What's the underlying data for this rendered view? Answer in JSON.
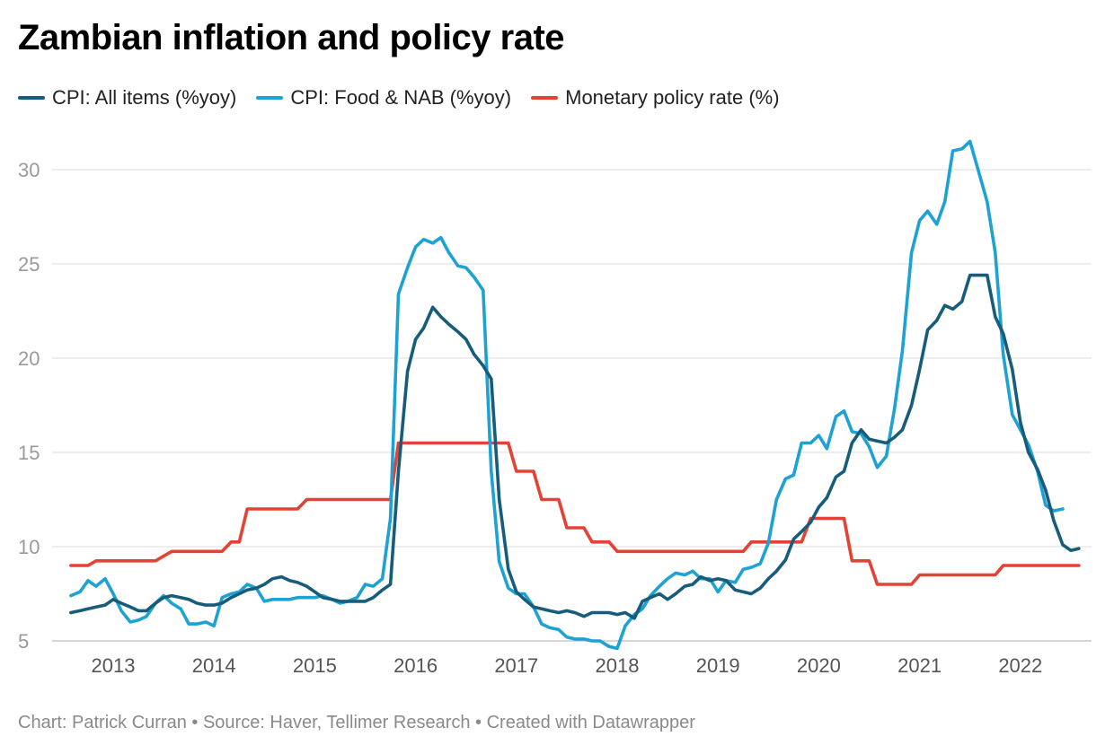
{
  "chart_data": {
    "type": "line",
    "title": "Zambian inflation and policy rate",
    "xlabel": "",
    "ylabel": "",
    "ylim": [
      5,
      32
    ],
    "yticks": [
      5,
      10,
      15,
      20,
      25,
      30
    ],
    "xlim": [
      2012.5,
      2022.75
    ],
    "xticks": [
      2013,
      2014,
      2015,
      2016,
      2017,
      2018,
      2019,
      2020,
      2021,
      2022
    ],
    "grid": true,
    "legend": "top-left",
    "series": [
      {
        "name": "CPI: All items (%yoy)",
        "color": "#175d7b",
        "points": [
          [
            2012.58,
            6.5
          ],
          [
            2012.67,
            6.6
          ],
          [
            2012.75,
            6.7
          ],
          [
            2012.83,
            6.8
          ],
          [
            2012.92,
            6.9
          ],
          [
            2013.0,
            7.2
          ],
          [
            2013.08,
            7.0
          ],
          [
            2013.17,
            6.8
          ],
          [
            2013.25,
            6.6
          ],
          [
            2013.33,
            6.6
          ],
          [
            2013.42,
            7.0
          ],
          [
            2013.5,
            7.3
          ],
          [
            2013.58,
            7.4
          ],
          [
            2013.67,
            7.3
          ],
          [
            2013.75,
            7.2
          ],
          [
            2013.83,
            7.0
          ],
          [
            2013.92,
            6.9
          ],
          [
            2014.0,
            6.9
          ],
          [
            2014.08,
            7.0
          ],
          [
            2014.17,
            7.3
          ],
          [
            2014.25,
            7.5
          ],
          [
            2014.33,
            7.7
          ],
          [
            2014.42,
            7.8
          ],
          [
            2014.5,
            8.0
          ],
          [
            2014.58,
            8.3
          ],
          [
            2014.67,
            8.4
          ],
          [
            2014.75,
            8.2
          ],
          [
            2014.83,
            8.1
          ],
          [
            2014.92,
            7.9
          ],
          [
            2015.0,
            7.6
          ],
          [
            2015.08,
            7.3
          ],
          [
            2015.17,
            7.2
          ],
          [
            2015.25,
            7.1
          ],
          [
            2015.33,
            7.1
          ],
          [
            2015.42,
            7.1
          ],
          [
            2015.5,
            7.1
          ],
          [
            2015.58,
            7.3
          ],
          [
            2015.67,
            7.7
          ],
          [
            2015.75,
            8.0
          ],
          [
            2015.83,
            14.0
          ],
          [
            2015.92,
            19.3
          ],
          [
            2016.0,
            21.0
          ],
          [
            2016.08,
            21.6
          ],
          [
            2016.17,
            22.7
          ],
          [
            2016.25,
            22.2
          ],
          [
            2016.33,
            21.8
          ],
          [
            2016.42,
            21.4
          ],
          [
            2016.5,
            21.0
          ],
          [
            2016.58,
            20.2
          ],
          [
            2016.67,
            19.6
          ],
          [
            2016.75,
            18.9
          ],
          [
            2016.83,
            12.5
          ],
          [
            2016.92,
            8.8
          ],
          [
            2017.0,
            7.6
          ],
          [
            2017.08,
            7.2
          ],
          [
            2017.17,
            6.8
          ],
          [
            2017.25,
            6.7
          ],
          [
            2017.33,
            6.6
          ],
          [
            2017.42,
            6.5
          ],
          [
            2017.5,
            6.6
          ],
          [
            2017.58,
            6.5
          ],
          [
            2017.67,
            6.3
          ],
          [
            2017.75,
            6.5
          ],
          [
            2017.83,
            6.5
          ],
          [
            2017.92,
            6.5
          ],
          [
            2018.0,
            6.4
          ],
          [
            2018.08,
            6.5
          ],
          [
            2018.17,
            6.2
          ],
          [
            2018.25,
            7.1
          ],
          [
            2018.33,
            7.3
          ],
          [
            2018.42,
            7.5
          ],
          [
            2018.5,
            7.2
          ],
          [
            2018.58,
            7.5
          ],
          [
            2018.67,
            7.9
          ],
          [
            2018.75,
            8.0
          ],
          [
            2018.83,
            8.4
          ],
          [
            2018.92,
            8.2
          ],
          [
            2019.0,
            8.3
          ],
          [
            2019.08,
            8.2
          ],
          [
            2019.17,
            7.7
          ],
          [
            2019.25,
            7.6
          ],
          [
            2019.33,
            7.5
          ],
          [
            2019.42,
            7.8
          ],
          [
            2019.5,
            8.3
          ],
          [
            2019.58,
            8.7
          ],
          [
            2019.67,
            9.3
          ],
          [
            2019.75,
            10.4
          ],
          [
            2019.83,
            10.8
          ],
          [
            2019.92,
            11.3
          ],
          [
            2020.0,
            12.1
          ],
          [
            2020.08,
            12.6
          ],
          [
            2020.17,
            13.7
          ],
          [
            2020.25,
            14.0
          ],
          [
            2020.33,
            15.5
          ],
          [
            2020.42,
            16.2
          ],
          [
            2020.5,
            15.7
          ],
          [
            2020.58,
            15.6
          ],
          [
            2020.67,
            15.5
          ],
          [
            2020.75,
            15.8
          ],
          [
            2020.83,
            16.2
          ],
          [
            2020.92,
            17.5
          ],
          [
            2021.0,
            19.4
          ],
          [
            2021.08,
            21.5
          ],
          [
            2021.17,
            22.0
          ],
          [
            2021.25,
            22.8
          ],
          [
            2021.33,
            22.6
          ],
          [
            2021.42,
            23.0
          ],
          [
            2021.5,
            24.4
          ],
          [
            2021.58,
            24.4
          ],
          [
            2021.67,
            24.4
          ],
          [
            2021.75,
            22.2
          ],
          [
            2021.83,
            21.3
          ],
          [
            2021.92,
            19.4
          ],
          [
            2022.0,
            16.6
          ],
          [
            2022.08,
            15.0
          ],
          [
            2022.17,
            14.1
          ],
          [
            2022.25,
            13.0
          ],
          [
            2022.33,
            11.4
          ],
          [
            2022.42,
            10.1
          ],
          [
            2022.5,
            9.8
          ],
          [
            2022.58,
            9.9
          ]
        ]
      },
      {
        "name": "CPI: Food & NAB (%yoy)",
        "color": "#1ea2d3",
        "points": [
          [
            2012.58,
            7.4
          ],
          [
            2012.67,
            7.6
          ],
          [
            2012.75,
            8.2
          ],
          [
            2012.83,
            7.9
          ],
          [
            2012.92,
            8.3
          ],
          [
            2013.0,
            7.5
          ],
          [
            2013.08,
            6.6
          ],
          [
            2013.17,
            6.0
          ],
          [
            2013.25,
            6.1
          ],
          [
            2013.33,
            6.3
          ],
          [
            2013.42,
            7.0
          ],
          [
            2013.5,
            7.4
          ],
          [
            2013.58,
            7.0
          ],
          [
            2013.67,
            6.7
          ],
          [
            2013.75,
            5.9
          ],
          [
            2013.83,
            5.9
          ],
          [
            2013.92,
            6.0
          ],
          [
            2014.0,
            5.8
          ],
          [
            2014.08,
            7.3
          ],
          [
            2014.17,
            7.5
          ],
          [
            2014.25,
            7.6
          ],
          [
            2014.33,
            8.0
          ],
          [
            2014.42,
            7.8
          ],
          [
            2014.5,
            7.1
          ],
          [
            2014.58,
            7.2
          ],
          [
            2014.67,
            7.2
          ],
          [
            2014.75,
            7.2
          ],
          [
            2014.83,
            7.3
          ],
          [
            2014.92,
            7.3
          ],
          [
            2015.0,
            7.3
          ],
          [
            2015.08,
            7.4
          ],
          [
            2015.17,
            7.2
          ],
          [
            2015.25,
            7.0
          ],
          [
            2015.33,
            7.1
          ],
          [
            2015.42,
            7.3
          ],
          [
            2015.5,
            8.0
          ],
          [
            2015.58,
            7.9
          ],
          [
            2015.67,
            8.3
          ],
          [
            2015.75,
            11.5
          ],
          [
            2015.83,
            23.4
          ],
          [
            2015.92,
            24.8
          ],
          [
            2016.0,
            25.9
          ],
          [
            2016.08,
            26.3
          ],
          [
            2016.17,
            26.1
          ],
          [
            2016.25,
            26.4
          ],
          [
            2016.33,
            25.6
          ],
          [
            2016.42,
            24.9
          ],
          [
            2016.5,
            24.8
          ],
          [
            2016.58,
            24.3
          ],
          [
            2016.67,
            23.6
          ],
          [
            2016.75,
            14.0
          ],
          [
            2016.83,
            9.2
          ],
          [
            2016.92,
            7.8
          ],
          [
            2017.0,
            7.5
          ],
          [
            2017.08,
            7.5
          ],
          [
            2017.17,
            6.8
          ],
          [
            2017.25,
            5.9
          ],
          [
            2017.33,
            5.7
          ],
          [
            2017.42,
            5.6
          ],
          [
            2017.5,
            5.2
          ],
          [
            2017.58,
            5.1
          ],
          [
            2017.67,
            5.1
          ],
          [
            2017.75,
            5.0
          ],
          [
            2017.83,
            5.0
          ],
          [
            2017.92,
            4.7
          ],
          [
            2018.0,
            4.6
          ],
          [
            2018.08,
            5.8
          ],
          [
            2018.17,
            6.4
          ],
          [
            2018.25,
            6.7
          ],
          [
            2018.33,
            7.4
          ],
          [
            2018.42,
            7.9
          ],
          [
            2018.5,
            8.3
          ],
          [
            2018.58,
            8.6
          ],
          [
            2018.67,
            8.5
          ],
          [
            2018.75,
            8.7
          ],
          [
            2018.83,
            8.3
          ],
          [
            2018.92,
            8.3
          ],
          [
            2019.0,
            7.6
          ],
          [
            2019.08,
            8.2
          ],
          [
            2019.17,
            8.1
          ],
          [
            2019.25,
            8.8
          ],
          [
            2019.33,
            8.9
          ],
          [
            2019.42,
            9.1
          ],
          [
            2019.5,
            10.2
          ],
          [
            2019.58,
            12.5
          ],
          [
            2019.67,
            13.6
          ],
          [
            2019.75,
            13.8
          ],
          [
            2019.83,
            15.5
          ],
          [
            2019.92,
            15.5
          ],
          [
            2020.0,
            15.9
          ],
          [
            2020.08,
            15.2
          ],
          [
            2020.17,
            16.9
          ],
          [
            2020.25,
            17.2
          ],
          [
            2020.33,
            16.1
          ],
          [
            2020.42,
            16.0
          ],
          [
            2020.5,
            15.3
          ],
          [
            2020.58,
            14.2
          ],
          [
            2020.67,
            14.8
          ],
          [
            2020.75,
            17.3
          ],
          [
            2020.83,
            20.4
          ],
          [
            2020.92,
            25.6
          ],
          [
            2021.0,
            27.3
          ],
          [
            2021.08,
            27.8
          ],
          [
            2021.17,
            27.1
          ],
          [
            2021.25,
            28.3
          ],
          [
            2021.33,
            31.0
          ],
          [
            2021.42,
            31.1
          ],
          [
            2021.5,
            31.5
          ],
          [
            2021.58,
            30.0
          ],
          [
            2021.67,
            28.3
          ],
          [
            2021.75,
            25.6
          ],
          [
            2021.83,
            20.2
          ],
          [
            2021.92,
            17.0
          ],
          [
            2022.0,
            16.2
          ],
          [
            2022.08,
            15.4
          ],
          [
            2022.17,
            14.0
          ],
          [
            2022.25,
            12.2
          ],
          [
            2022.33,
            11.9
          ],
          [
            2022.42,
            12.0
          ]
        ]
      },
      {
        "name": "Monetary policy rate (%)",
        "color": "#e34234",
        "points": [
          [
            2012.58,
            9.0
          ],
          [
            2012.75,
            9.0
          ],
          [
            2012.83,
            9.25
          ],
          [
            2013.0,
            9.25
          ],
          [
            2013.42,
            9.25
          ],
          [
            2013.58,
            9.75
          ],
          [
            2014.08,
            9.75
          ],
          [
            2014.17,
            10.25
          ],
          [
            2014.25,
            10.25
          ],
          [
            2014.33,
            12.0
          ],
          [
            2014.83,
            12.0
          ],
          [
            2014.92,
            12.5
          ],
          [
            2015.75,
            12.5
          ],
          [
            2015.83,
            15.5
          ],
          [
            2016.92,
            15.5
          ],
          [
            2017.0,
            14.0
          ],
          [
            2017.17,
            14.0
          ],
          [
            2017.25,
            12.5
          ],
          [
            2017.42,
            12.5
          ],
          [
            2017.5,
            11.0
          ],
          [
            2017.67,
            11.0
          ],
          [
            2017.75,
            10.25
          ],
          [
            2017.92,
            10.25
          ],
          [
            2018.0,
            9.75
          ],
          [
            2019.25,
            9.75
          ],
          [
            2019.33,
            10.25
          ],
          [
            2019.83,
            10.25
          ],
          [
            2019.92,
            11.5
          ],
          [
            2020.25,
            11.5
          ],
          [
            2020.33,
            9.25
          ],
          [
            2020.5,
            9.25
          ],
          [
            2020.58,
            8.0
          ],
          [
            2020.92,
            8.0
          ],
          [
            2021.0,
            8.5
          ],
          [
            2021.75,
            8.5
          ],
          [
            2021.83,
            9.0
          ],
          [
            2022.58,
            9.0
          ]
        ]
      }
    ]
  },
  "footer": "Chart: Patrick Curran • Source: Haver, Tellimer Research • Created with Datawrapper"
}
